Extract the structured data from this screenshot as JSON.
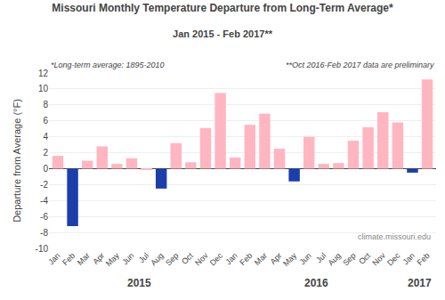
{
  "chart_data": {
    "type": "bar",
    "title": "Missouri Monthly Temperature Departure from Long-Term Average*",
    "subtitle": "Jan 2015 - Feb 2017**",
    "ylabel": "Departure from Average (°F)",
    "annotations": [
      "*Long-term average: 1895-2010",
      "**Oct 2016-Feb 2017 data are preliminary",
      "climate.missouri.edu"
    ],
    "year_labels": [
      "2015",
      "2016",
      "2017"
    ],
    "categories": [
      "Jan",
      "Feb",
      "Mar",
      "Apr",
      "May",
      "Jun",
      "Jul",
      "Aug",
      "Sep",
      "Oct",
      "Nov",
      "Dec",
      "Jan",
      "Feb",
      "Mar",
      "Apr",
      "May",
      "Jun",
      "Jul",
      "Aug",
      "Sep",
      "Oct",
      "Nov",
      "Dec",
      "Jan",
      "Feb"
    ],
    "values": [
      1.6,
      -7.2,
      1.0,
      2.8,
      0.6,
      1.3,
      -0.1,
      -2.5,
      3.2,
      0.8,
      5.1,
      9.5,
      1.4,
      5.5,
      6.9,
      2.5,
      -1.6,
      4.0,
      0.6,
      0.7,
      3.5,
      5.2,
      7.1,
      5.8,
      -0.5,
      11.2
    ],
    "colors": [
      "#FFB6C1",
      "#1C3EAA",
      "#FFB6C1",
      "#FFB6C1",
      "#FFB6C1",
      "#FFB6C1",
      "#FFB6C1",
      "#1C3EAA",
      "#FFB6C1",
      "#FFB6C1",
      "#FFB6C1",
      "#FFB6C1",
      "#FFB6C1",
      "#FFB6C1",
      "#FFB6C1",
      "#FFB6C1",
      "#1C3EAA",
      "#FFB6C1",
      "#FFB6C1",
      "#FFB6C1",
      "#FFB6C1",
      "#FFB6C1",
      "#FFB6C1",
      "#FFB6C1",
      "#1C3EAA",
      "#FFB6C1"
    ],
    "ylim": [
      -10.0,
      12.0
    ],
    "yticks": [
      -10,
      -8,
      -6,
      -4,
      -2,
      0,
      2,
      4,
      6,
      8,
      10,
      12
    ],
    "grid": true
  }
}
